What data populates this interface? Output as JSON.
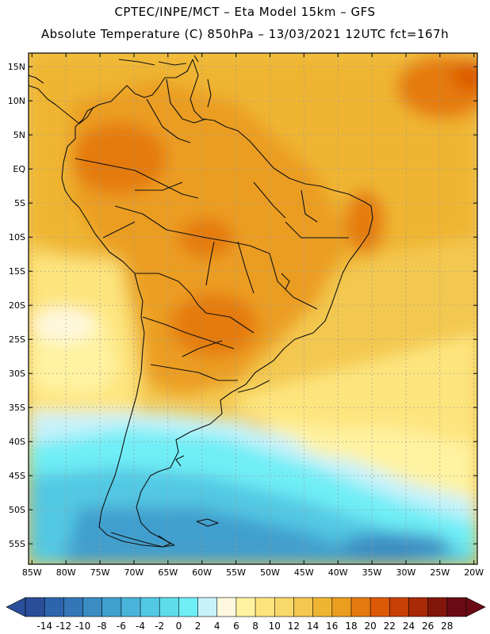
{
  "header": {
    "line1": "CPTEC/INPE/MCT –  Eta Model 15km – GFS",
    "line2": "Absolute Temperature (C) 850hPa – 13/03/2021 12UTC fct=167h"
  },
  "map": {
    "lat_labels": [
      "15N",
      "10N",
      "5N",
      "EQ",
      "5S",
      "10S",
      "15S",
      "20S",
      "25S",
      "30S",
      "35S",
      "40S",
      "45S",
      "50S",
      "55S"
    ],
    "lon_labels": [
      "85W",
      "80W",
      "75W",
      "70W",
      "65W",
      "60W",
      "55W",
      "50W",
      "45W",
      "40W",
      "35W",
      "30W",
      "25W",
      "20W"
    ],
    "lat_range": [
      17,
      -58
    ],
    "lon_range": [
      -85.5,
      -19.5
    ]
  },
  "colorbar": {
    "labels": [
      "-14",
      "-12",
      "-10",
      "-8",
      "-6",
      "-4",
      "-2",
      "0",
      "2",
      "4",
      "6",
      "8",
      "10",
      "12",
      "14",
      "16",
      "18",
      "20",
      "22",
      "24",
      "26",
      "28"
    ],
    "colors": [
      "#2b4e9a",
      "#2e64ab",
      "#3377b8",
      "#3a8cc3",
      "#3f9fce",
      "#49b4d9",
      "#52c8e3",
      "#5edcec",
      "#6feef6",
      "#c8f2fb",
      "#fff8de",
      "#fff2a0",
      "#fde57e",
      "#f8d86a",
      "#f3c850",
      "#efb532",
      "#eb9d20",
      "#e57a10",
      "#dc5a06",
      "#c84004",
      "#a82a06",
      "#82160a",
      "#6a0b14"
    ]
  }
}
